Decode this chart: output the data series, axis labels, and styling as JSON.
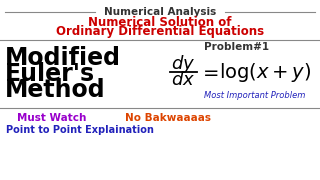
{
  "bg_color": "#ffffff",
  "line_color": "#888888",
  "title1": "Numerical Analysis",
  "title1_color": "#333333",
  "title2": "Numerical Solution of",
  "title3": "Ordinary Differential Equations",
  "title_red_color": "#cc0000",
  "problem_label": "Problem#1",
  "problem_color": "#333333",
  "left_text1": "Modified",
  "left_text2": "Euler's",
  "left_text3": "Method",
  "left_color": "#000000",
  "most_important": "Most Important Problem",
  "most_important_color": "#2222bb",
  "must_watch": "Must Watch",
  "must_watch_color": "#9900cc",
  "no_bak": "No Bakwaaaas",
  "no_bak_color": "#dd4400",
  "point_to_point": "Point to Point Explaination",
  "point_to_point_color": "#2222bb"
}
